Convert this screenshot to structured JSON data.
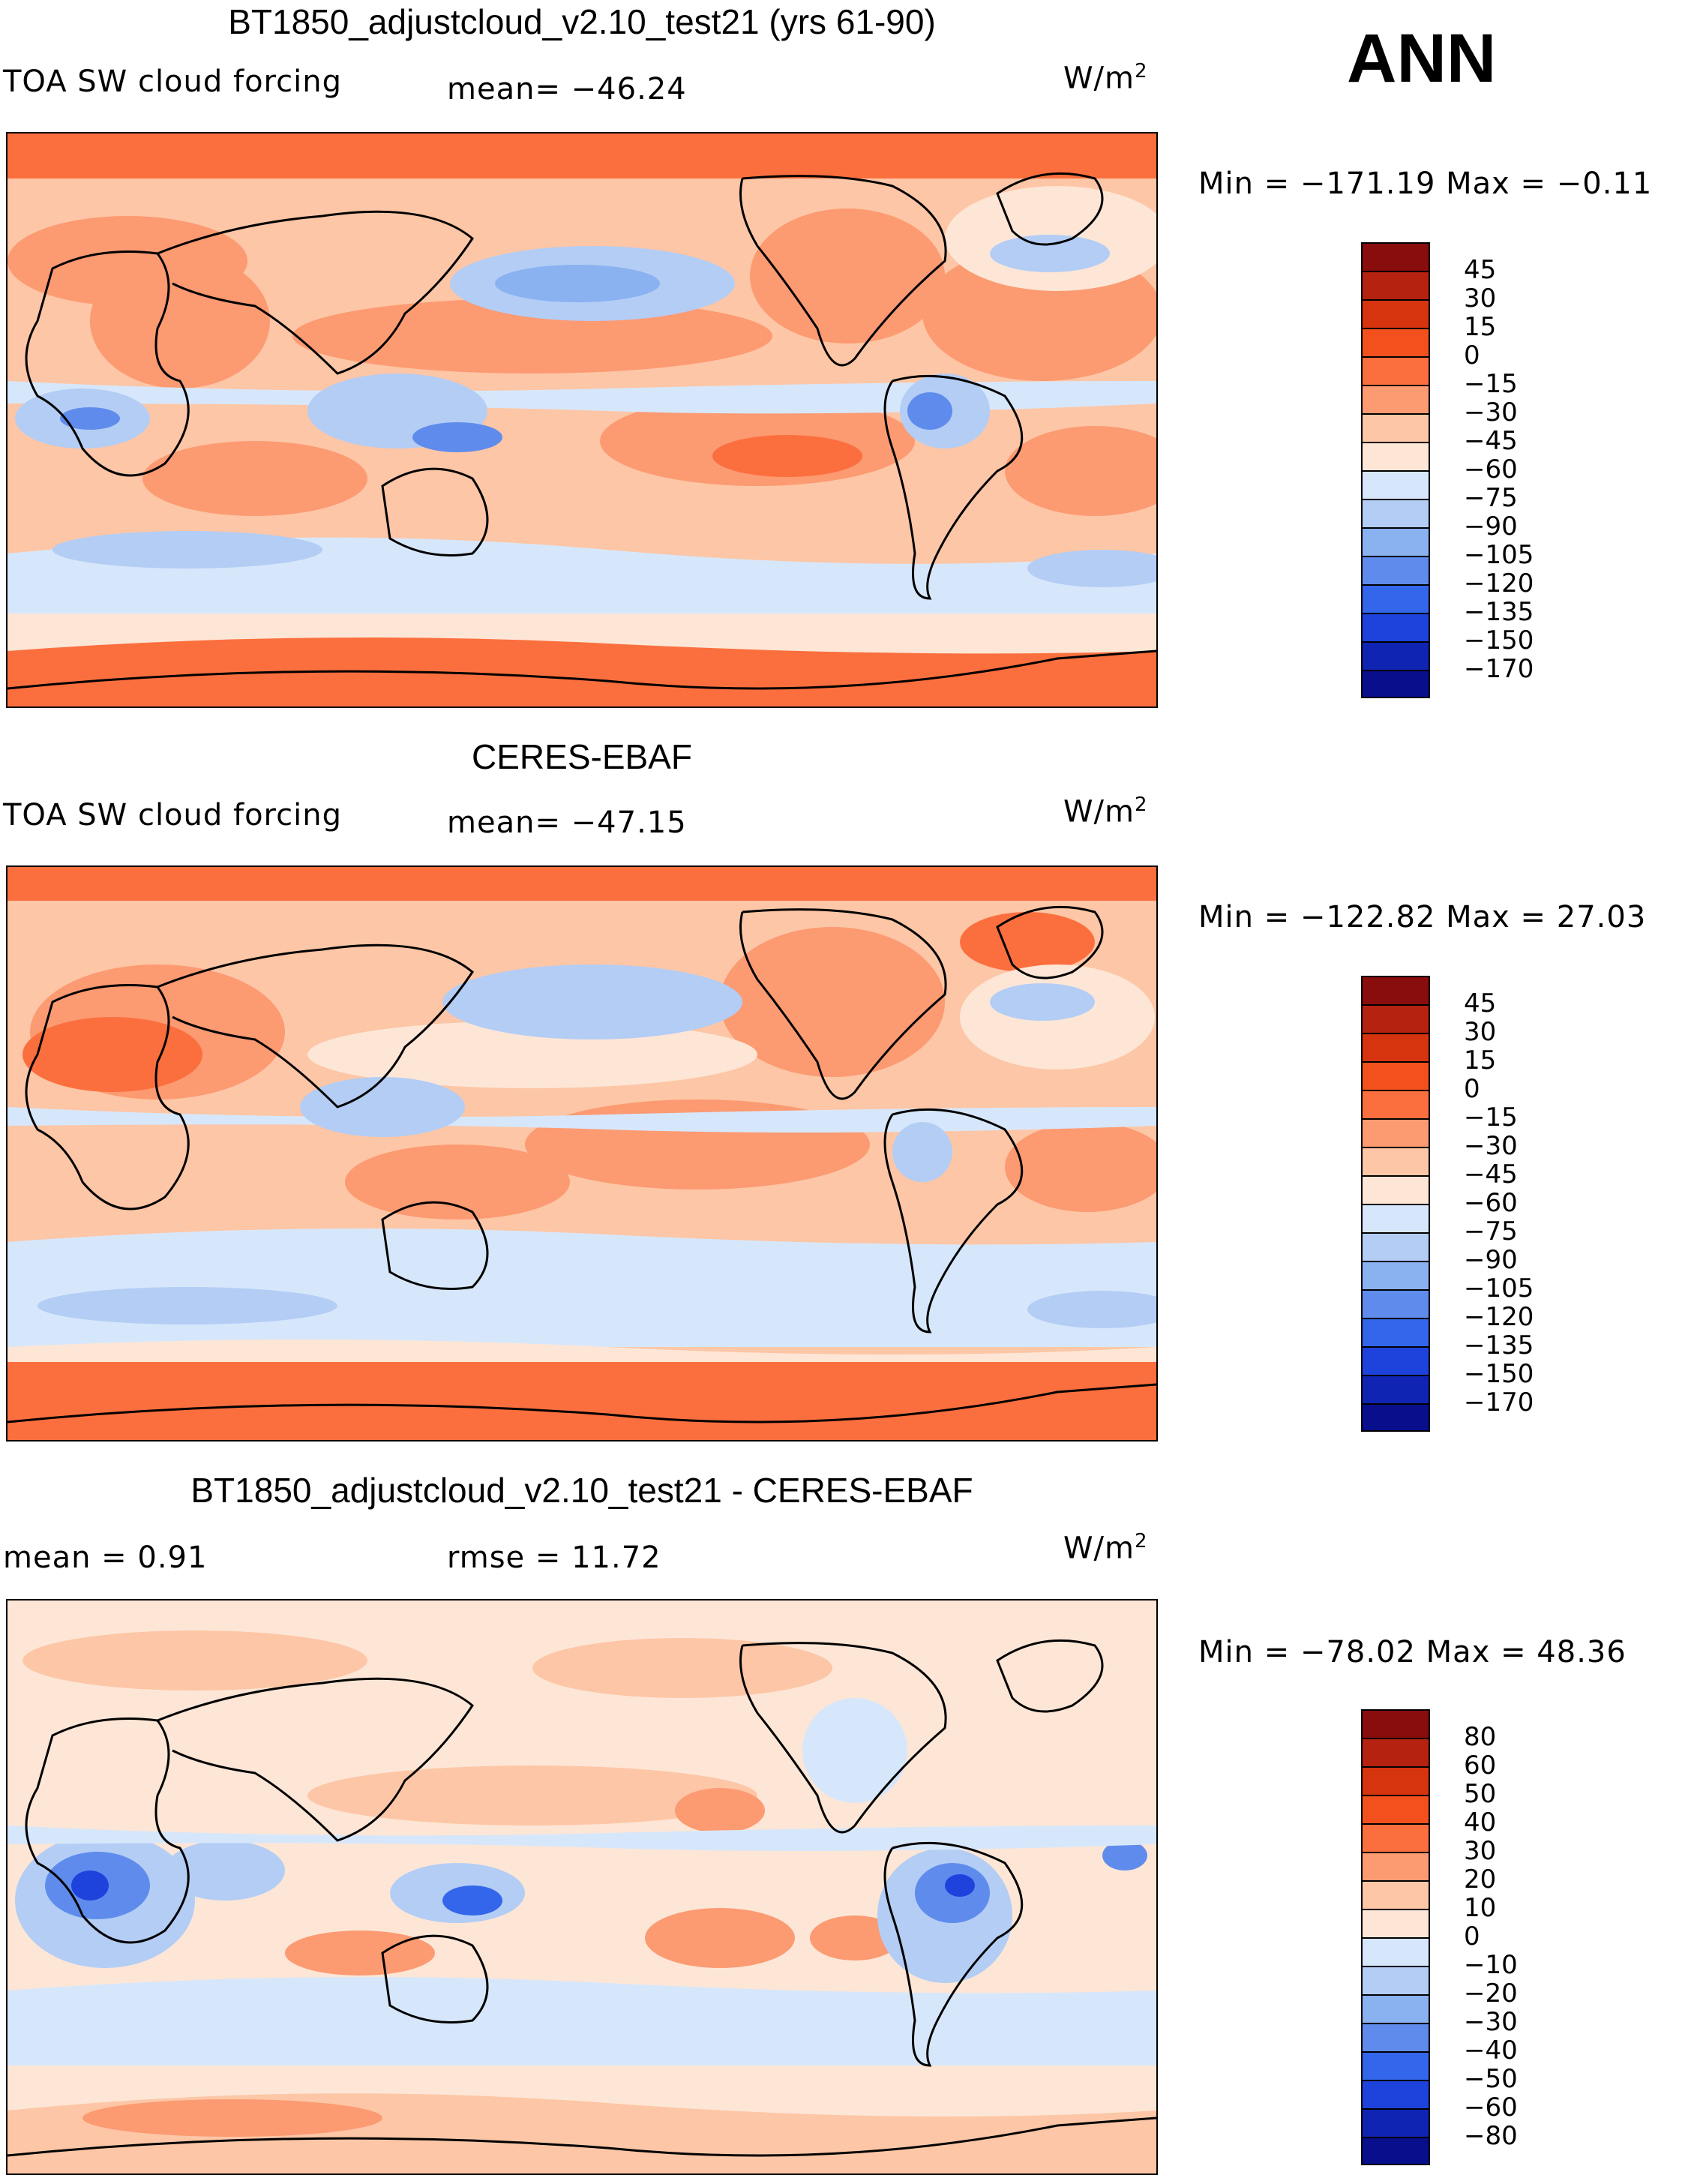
{
  "season": "ANN",
  "panels": [
    {
      "title": "BT1850_adjustcloud_v2.10_test21 (yrs 61-90)",
      "left_label": "TOA SW cloud forcing",
      "center_label": "mean= −46.24",
      "units": "W/m",
      "units_sup": "2",
      "stats": "Min  =  −171.19  Max  =    −0.11",
      "colorbar_labels": [
        "45",
        "30",
        "15",
        "0",
        "−15",
        "−30",
        "−45",
        "−60",
        "−75",
        "−90",
        "−105",
        "−120",
        "−135",
        "−150",
        "−170"
      ],
      "colorbar_colors": [
        "#8a0d0d",
        "#b5220f",
        "#d6340f",
        "#f2511e",
        "#fb6f3e",
        "#fc9a72",
        "#fdc6a6",
        "#fde6d6",
        "#d7e7fb",
        "#b3cdf5",
        "#8ab1f0",
        "#5f8cec",
        "#3466eb",
        "#1e43dc",
        "#1024b4",
        "#080e8c"
      ]
    },
    {
      "title": "CERES-EBAF",
      "left_label": "TOA SW cloud forcing",
      "center_label": "mean= −47.15",
      "units": "W/m",
      "units_sup": "2",
      "stats": "Min  =  −122.82  Max  =    27.03",
      "colorbar_labels": [
        "45",
        "30",
        "15",
        "0",
        "−15",
        "−30",
        "−45",
        "−60",
        "−75",
        "−90",
        "−105",
        "−120",
        "−135",
        "−150",
        "−170"
      ],
      "colorbar_colors": [
        "#8a0d0d",
        "#b5220f",
        "#d6340f",
        "#f2511e",
        "#fb6f3e",
        "#fc9a72",
        "#fdc6a6",
        "#fde6d6",
        "#d7e7fb",
        "#b3cdf5",
        "#8ab1f0",
        "#5f8cec",
        "#3466eb",
        "#1e43dc",
        "#1024b4",
        "#080e8c"
      ]
    },
    {
      "title": "BT1850_adjustcloud_v2.10_test21 - CERES-EBAF",
      "left_label": "mean  =     0.91",
      "center_label": "rmse  =    11.72",
      "units": "W/m",
      "units_sup": "2",
      "stats": "Min  =  −78.02  Max  =    48.36",
      "colorbar_labels": [
        "80",
        "60",
        "50",
        "40",
        "30",
        "20",
        "10",
        "0",
        "−10",
        "−20",
        "−30",
        "−40",
        "−50",
        "−60",
        "−80"
      ],
      "colorbar_colors": [
        "#8a0d0d",
        "#b5220f",
        "#d6340f",
        "#f2511e",
        "#fb6f3e",
        "#fc9a72",
        "#fdc6a6",
        "#fde6d6",
        "#d7e7fb",
        "#b3cdf5",
        "#8ab1f0",
        "#5f8cec",
        "#3466eb",
        "#1e43dc",
        "#1024b4",
        "#080e8c"
      ]
    }
  ],
  "chart_data": [
    {
      "type": "heatmap",
      "title": "BT1850_adjustcloud_v2.10_test21 (yrs 61-90)",
      "variable": "TOA SW cloud forcing",
      "units": "W/m2",
      "mean": -46.24,
      "min": -171.19,
      "max": -0.11,
      "contour_levels": [
        -170,
        -150,
        -135,
        -120,
        -105,
        -90,
        -75,
        -60,
        -45,
        -30,
        -15,
        0,
        15,
        30,
        45
      ]
    },
    {
      "type": "heatmap",
      "title": "CERES-EBAF",
      "variable": "TOA SW cloud forcing",
      "units": "W/m2",
      "mean": -47.15,
      "min": -122.82,
      "max": 27.03,
      "contour_levels": [
        -170,
        -150,
        -135,
        -120,
        -105,
        -90,
        -75,
        -60,
        -45,
        -30,
        -15,
        0,
        15,
        30,
        45
      ]
    },
    {
      "type": "heatmap",
      "title": "BT1850_adjustcloud_v2.10_test21 - CERES-EBAF",
      "units": "W/m2",
      "mean": 0.91,
      "rmse": 11.72,
      "min": -78.02,
      "max": 48.36,
      "contour_levels": [
        -80,
        -60,
        -50,
        -40,
        -30,
        -20,
        -10,
        0,
        10,
        20,
        30,
        40,
        50,
        60,
        80
      ]
    }
  ]
}
